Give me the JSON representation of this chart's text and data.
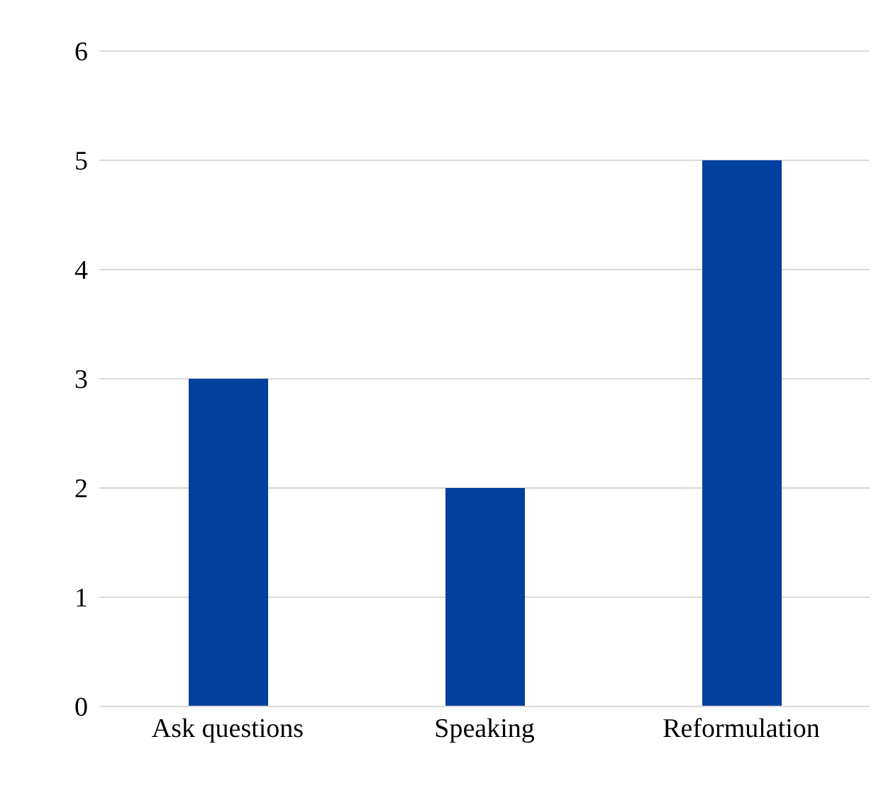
{
  "chart_data": {
    "type": "bar",
    "categories": [
      "Ask questions",
      "Speaking",
      "Reformulation"
    ],
    "values": [
      3,
      2,
      5
    ],
    "color": "#00409e",
    "ylim": [
      0,
      6
    ],
    "yticks": [
      0,
      1,
      2,
      3,
      4,
      5,
      6
    ],
    "grid": "y",
    "legend": false
  }
}
